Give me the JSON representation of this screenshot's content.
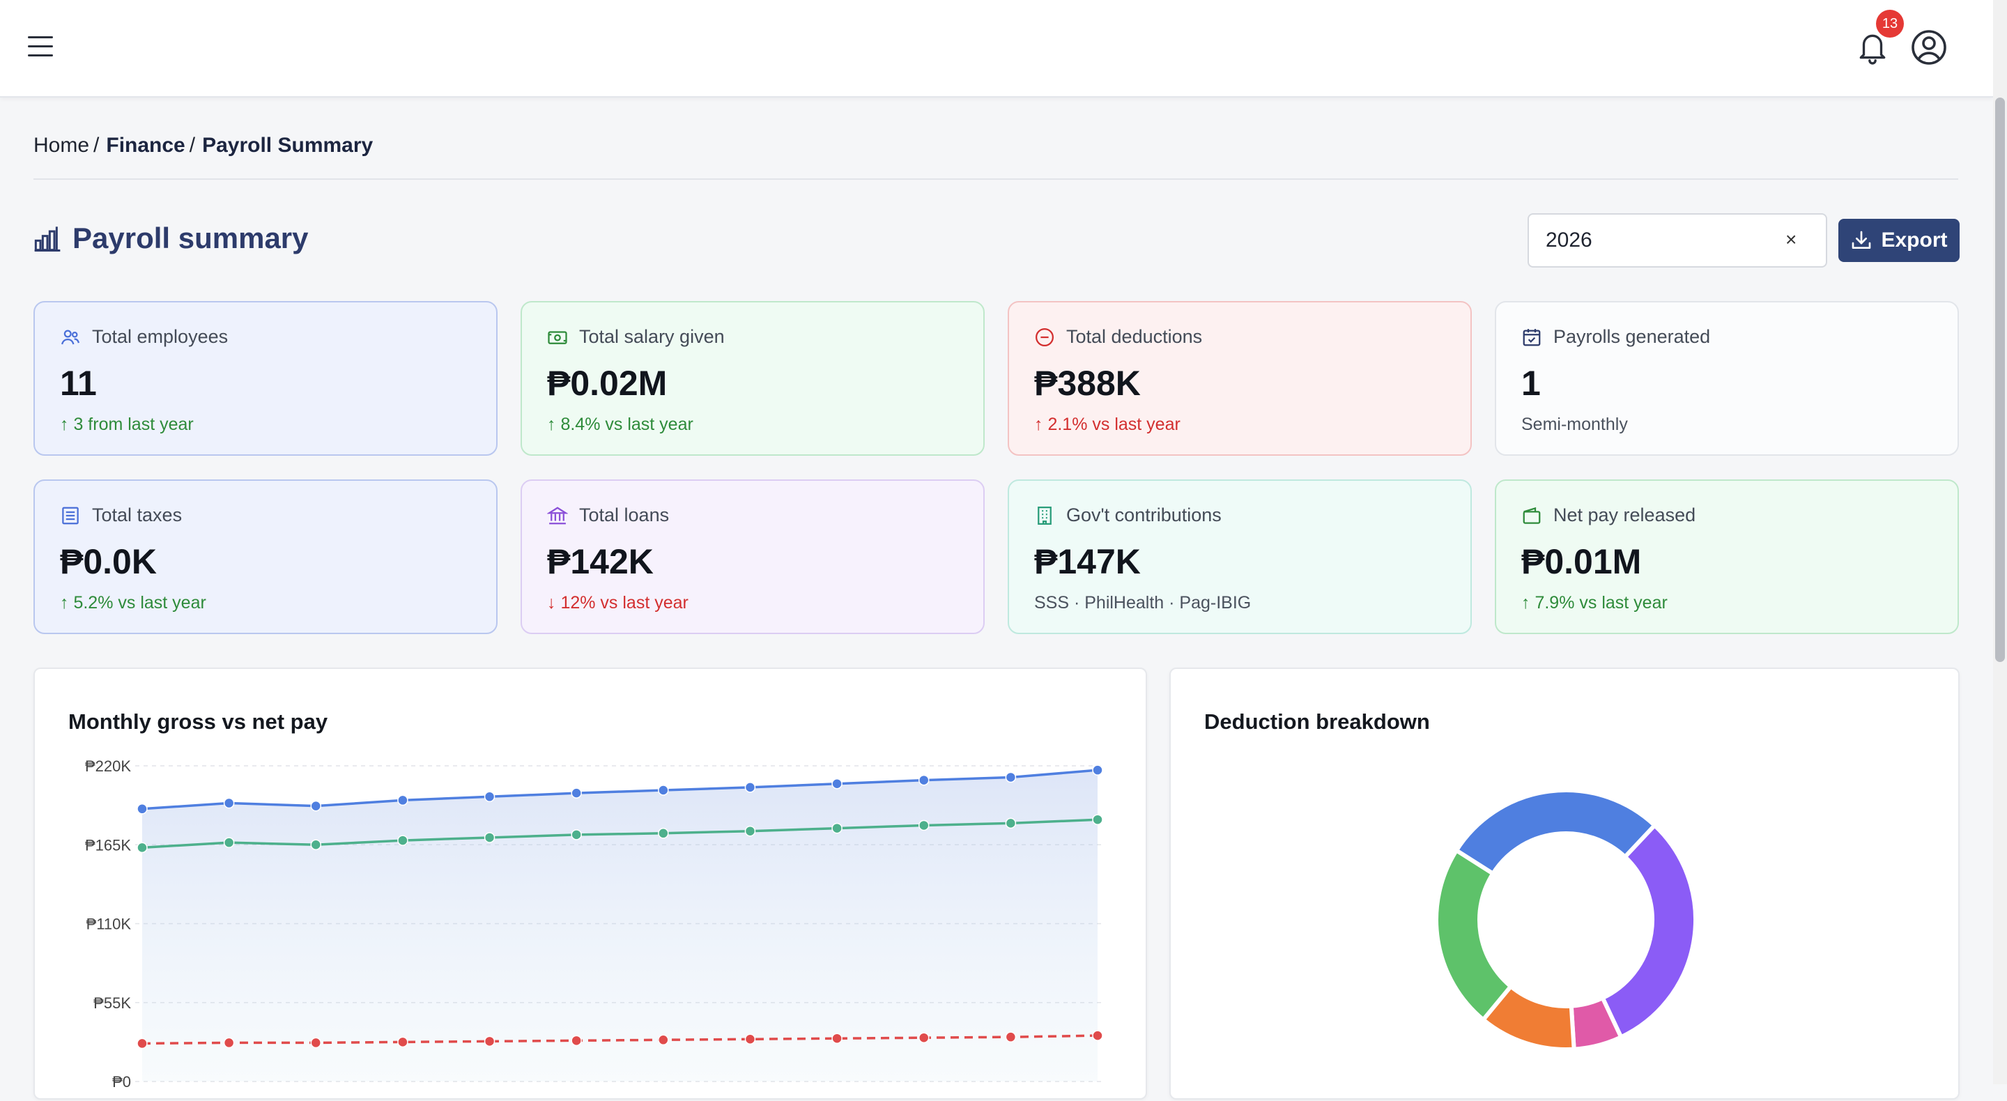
{
  "header": {
    "notification_count": "13",
    "icons": [
      "menu-icon",
      "bell-icon",
      "user-circle-icon"
    ]
  },
  "breadcrumb": {
    "home": "Home",
    "section": "Finance",
    "current": "Payroll Summary",
    "separator": "/"
  },
  "page": {
    "title": "Payroll summary",
    "year_value": "2026",
    "clear_label": "×",
    "export_label": "Export"
  },
  "cards": [
    {
      "label": "Total employees",
      "value": "11",
      "note": "↑ 3 from last year",
      "trend": "up",
      "icon": "users-icon",
      "accent": "#4a6fd8"
    },
    {
      "label": "Total salary given",
      "value": "₱0.02M",
      "note": "↑ 8.4% vs last year",
      "trend": "up",
      "icon": "cash-icon",
      "accent": "#2e8b3a"
    },
    {
      "label": "Total deductions",
      "value": "₱388K",
      "note": "↑ 2.1% vs last year",
      "trend": "down",
      "icon": "minus-circle-icon",
      "accent": "#d32f2f"
    },
    {
      "label": "Payrolls generated",
      "value": "1",
      "note": "Semi-monthly",
      "trend": "neutral",
      "icon": "calendar-check-icon",
      "accent": "#2d3b6b"
    },
    {
      "label": "Total taxes",
      "value": "₱0.0K",
      "note": "↑ 5.2% vs last year",
      "trend": "up",
      "icon": "receipt-icon",
      "accent": "#4a6fd8"
    },
    {
      "label": "Total loans",
      "value": "₱142K",
      "note": "↓ 12% vs last year",
      "trend": "down",
      "icon": "bank-icon",
      "accent": "#8a4fd8"
    },
    {
      "label": "Gov't contributions",
      "value": "₱147K",
      "note": "SSS · PhilHealth · Pag-IBIG",
      "trend": "neutral",
      "icon": "building-icon",
      "accent": "#2a9d7a"
    },
    {
      "label": "Net pay released",
      "value": "₱0.01M",
      "note": "↑ 7.9% vs last year",
      "trend": "up",
      "icon": "wallet-icon",
      "accent": "#2e8b3a"
    }
  ],
  "chart_data": [
    {
      "type": "line",
      "title": "Monthly gross vs net pay",
      "ylim": [
        0,
        220000
      ],
      "yticks": [
        "₱0",
        "₱55K",
        "₱110K",
        "₱165K",
        "₱220K"
      ],
      "x": [
        1,
        2,
        3,
        4,
        5,
        6,
        7,
        8,
        9,
        10,
        11,
        12
      ],
      "grid": true,
      "series": [
        {
          "values": [
            190000,
            194000,
            192000,
            196000,
            198500,
            201000,
            203000,
            205000,
            207500,
            210000,
            212000,
            217000
          ],
          "color": "#4f7fe0",
          "style": "solid",
          "fill": true
        },
        {
          "values": [
            163000,
            166500,
            165000,
            168000,
            170000,
            172000,
            173000,
            174500,
            176500,
            178500,
            180000,
            182500
          ],
          "color": "#4db08c",
          "style": "solid",
          "fill": false
        },
        {
          "values": [
            26500,
            27000,
            27000,
            27500,
            28000,
            28500,
            29000,
            29500,
            30000,
            30500,
            31000,
            32000
          ],
          "color": "#e04b4b",
          "style": "dashed",
          "fill": false
        }
      ]
    },
    {
      "type": "pie",
      "title": "Deduction breakdown",
      "donut": true,
      "slices": [
        {
          "value": 31,
          "color": "#8b5cf6"
        },
        {
          "value": 6,
          "color": "#e05aa8"
        },
        {
          "value": 12,
          "color": "#f07d34"
        },
        {
          "value": 23,
          "color": "#5ec26a"
        },
        {
          "value": 28,
          "color": "#4f7fe0"
        }
      ]
    }
  ]
}
